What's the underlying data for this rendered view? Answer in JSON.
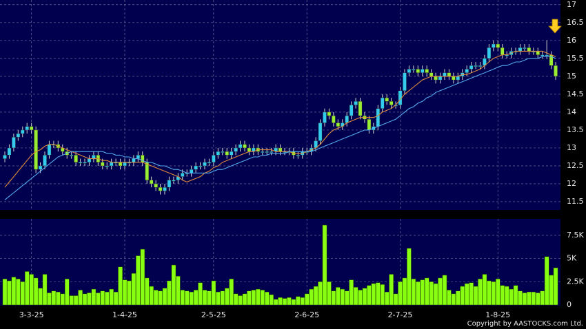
{
  "chart_data": {
    "type": "candlestick",
    "categories": [
      null,
      null,
      null,
      null,
      null,
      null,
      "3-3-25",
      null,
      null,
      null,
      null,
      null,
      null,
      null,
      null,
      null,
      null,
      null,
      null,
      null,
      null,
      null,
      null,
      null,
      null,
      null,
      null,
      "1-4-25",
      null,
      null,
      null,
      null,
      null,
      null,
      null,
      null,
      null,
      null,
      null,
      null,
      null,
      null,
      null,
      null,
      null,
      null,
      null,
      "2-5-25",
      null,
      null,
      null,
      null,
      null,
      null,
      null,
      null,
      null,
      null,
      null,
      null,
      null,
      null,
      null,
      null,
      null,
      null,
      null,
      null,
      "2-6-25",
      null,
      null,
      null,
      null,
      null,
      null,
      null,
      null,
      null,
      null,
      null,
      null,
      null,
      null,
      null,
      null,
      null,
      null,
      null,
      null,
      "2-7-25",
      null,
      null,
      null,
      null,
      null,
      null,
      null,
      null,
      null,
      null,
      null,
      null,
      null,
      null,
      null,
      null,
      null,
      null,
      null,
      null,
      null,
      "1-8-25",
      null,
      null,
      null,
      null,
      null,
      null,
      null,
      null,
      null,
      null,
      null,
      null,
      null
    ],
    "open": [
      12.7,
      12.8,
      13.0,
      13.3,
      13.4,
      13.5,
      13.6,
      13.5,
      12.4,
      12.5,
      12.8,
      13.1,
      13.1,
      13.0,
      12.9,
      12.8,
      12.8,
      12.6,
      12.6,
      12.6,
      12.7,
      12.8,
      12.6,
      12.5,
      12.5,
      12.6,
      12.6,
      12.5,
      12.6,
      12.6,
      12.7,
      12.8,
      12.6,
      12.1,
      12.0,
      11.9,
      11.8,
      11.9,
      12.1,
      12.1,
      12.2,
      12.3,
      12.3,
      12.4,
      12.5,
      12.5,
      12.6,
      12.6,
      12.8,
      12.9,
      12.9,
      12.8,
      12.9,
      13.0,
      13.1,
      13.0,
      12.9,
      13.0,
      12.9,
      12.9,
      12.9,
      12.9,
      13.0,
      12.9,
      12.9,
      12.9,
      12.8,
      12.8,
      12.9,
      12.9,
      13.0,
      13.2,
      13.7,
      14.0,
      13.9,
      13.7,
      13.6,
      13.7,
      13.9,
      14.2,
      14.3,
      13.9,
      13.8,
      13.5,
      13.6,
      14.1,
      14.4,
      14.3,
      14.2,
      14.2,
      14.6,
      15.1,
      15.2,
      15.2,
      15.1,
      15.2,
      15.1,
      15.0,
      14.9,
      15.0,
      15.1,
      15.0,
      14.9,
      15.0,
      15.1,
      15.2,
      15.3,
      15.3,
      15.3,
      15.5,
      15.8,
      15.9,
      15.8,
      15.6,
      15.6,
      15.7,
      15.7,
      15.8,
      15.8,
      15.7,
      15.7,
      15.6,
      15.6,
      15.6,
      15.3
    ],
    "high": [
      12.9,
      13.1,
      13.4,
      13.5,
      13.6,
      13.7,
      13.7,
      13.6,
      12.6,
      12.9,
      13.2,
      13.2,
      13.2,
      13.1,
      13.0,
      12.9,
      12.9,
      12.7,
      12.7,
      12.8,
      12.9,
      12.9,
      12.7,
      12.6,
      12.7,
      12.7,
      12.7,
      12.7,
      12.7,
      12.8,
      12.9,
      12.9,
      12.7,
      12.2,
      12.1,
      12.0,
      12.0,
      12.2,
      12.2,
      12.3,
      12.4,
      12.4,
      12.5,
      12.6,
      12.6,
      12.7,
      12.7,
      12.9,
      13.0,
      13.0,
      13.0,
      13.0,
      13.1,
      13.2,
      13.2,
      13.1,
      13.1,
      13.1,
      13.0,
      13.0,
      13.0,
      13.1,
      13.1,
      13.0,
      13.0,
      13.0,
      12.9,
      13.0,
      13.0,
      13.1,
      13.3,
      13.8,
      14.1,
      14.1,
      14.0,
      13.8,
      13.8,
      14.0,
      14.3,
      14.4,
      14.4,
      14.0,
      13.9,
      13.7,
      14.2,
      14.5,
      14.5,
      14.4,
      14.3,
      14.7,
      15.2,
      15.3,
      15.3,
      15.3,
      15.3,
      15.3,
      15.2,
      15.1,
      15.1,
      15.2,
      15.2,
      15.1,
      15.1,
      15.2,
      15.3,
      15.4,
      15.4,
      15.4,
      15.6,
      15.9,
      16.0,
      16.0,
      15.9,
      15.7,
      15.8,
      15.8,
      15.9,
      15.9,
      15.9,
      15.8,
      15.8,
      15.7,
      16.0,
      15.7,
      15.4
    ],
    "low": [
      12.6,
      12.7,
      12.9,
      13.2,
      13.3,
      13.4,
      13.4,
      12.3,
      12.3,
      12.4,
      12.7,
      13.0,
      12.9,
      12.8,
      12.7,
      12.7,
      12.5,
      12.5,
      12.5,
      12.5,
      12.6,
      12.5,
      12.4,
      12.4,
      12.4,
      12.5,
      12.4,
      12.4,
      12.5,
      12.5,
      12.6,
      12.5,
      12.0,
      11.9,
      11.8,
      11.7,
      11.7,
      11.8,
      12.0,
      12.0,
      12.1,
      12.2,
      12.2,
      12.3,
      12.4,
      12.4,
      12.5,
      12.5,
      12.7,
      12.8,
      12.7,
      12.7,
      12.8,
      12.9,
      12.9,
      12.8,
      12.8,
      12.8,
      12.8,
      12.8,
      12.8,
      12.8,
      12.8,
      12.8,
      12.8,
      12.7,
      12.7,
      12.7,
      12.8,
      12.8,
      12.9,
      13.1,
      13.6,
      13.8,
      13.6,
      13.5,
      13.5,
      13.6,
      13.8,
      14.1,
      13.8,
      13.7,
      13.4,
      13.4,
      13.5,
      14.0,
      14.2,
      14.1,
      14.1,
      14.1,
      14.5,
      15.0,
      15.1,
      15.0,
      15.0,
      15.0,
      14.9,
      14.8,
      14.8,
      14.9,
      14.9,
      14.8,
      14.8,
      14.9,
      15.0,
      15.1,
      15.2,
      15.2,
      15.2,
      15.4,
      15.7,
      15.7,
      15.5,
      15.5,
      15.5,
      15.6,
      15.6,
      15.7,
      15.6,
      15.6,
      15.5,
      15.5,
      15.5,
      15.2,
      14.9
    ],
    "close": [
      12.8,
      13.0,
      13.3,
      13.4,
      13.5,
      13.6,
      13.5,
      12.4,
      12.5,
      12.8,
      13.1,
      13.1,
      13.0,
      12.9,
      12.8,
      12.8,
      12.6,
      12.6,
      12.6,
      12.7,
      12.8,
      12.6,
      12.5,
      12.5,
      12.6,
      12.6,
      12.5,
      12.6,
      12.6,
      12.7,
      12.8,
      12.6,
      12.1,
      12.0,
      11.9,
      11.8,
      11.9,
      12.1,
      12.1,
      12.2,
      12.3,
      12.3,
      12.4,
      12.5,
      12.5,
      12.6,
      12.6,
      12.8,
      12.9,
      12.9,
      12.8,
      12.9,
      13.0,
      13.1,
      13.0,
      12.9,
      13.0,
      12.9,
      12.9,
      12.9,
      12.9,
      13.0,
      12.9,
      12.9,
      12.9,
      12.8,
      12.8,
      12.9,
      12.9,
      13.0,
      13.2,
      13.7,
      14.0,
      13.9,
      13.7,
      13.6,
      13.7,
      13.9,
      14.2,
      14.3,
      13.9,
      13.8,
      13.5,
      13.6,
      14.1,
      14.4,
      14.3,
      14.2,
      14.2,
      14.6,
      15.1,
      15.2,
      15.2,
      15.1,
      15.2,
      15.1,
      15.0,
      14.9,
      15.0,
      15.1,
      15.0,
      14.9,
      15.0,
      15.1,
      15.2,
      15.3,
      15.3,
      15.3,
      15.5,
      15.8,
      15.9,
      15.8,
      15.6,
      15.6,
      15.7,
      15.7,
      15.8,
      15.8,
      15.7,
      15.7,
      15.6,
      15.6,
      15.6,
      15.3,
      15.0
    ],
    "up_color": "#33ccee",
    "down_color": "#99ee33",
    "series": [
      {
        "color": "#e08a3c",
        "values": [
          11.9,
          12.05,
          12.2,
          12.35,
          12.5,
          12.65,
          12.8,
          12.9,
          12.95,
          13.05,
          13.1,
          13.1,
          13.05,
          13.0,
          12.95,
          12.9,
          12.85,
          12.8,
          12.75,
          12.7,
          12.7,
          12.7,
          12.65,
          12.65,
          12.6,
          12.6,
          12.6,
          12.6,
          12.6,
          12.6,
          12.6,
          12.6,
          12.55,
          12.5,
          12.45,
          12.4,
          12.35,
          12.3,
          12.25,
          12.2,
          12.1,
          12.05,
          12.1,
          12.15,
          12.2,
          12.3,
          12.35,
          12.45,
          12.5,
          12.6,
          12.65,
          12.7,
          12.75,
          12.8,
          12.85,
          12.9,
          12.9,
          12.95,
          12.95,
          12.95,
          12.95,
          12.9,
          12.9,
          12.9,
          12.9,
          12.85,
          12.85,
          12.85,
          12.9,
          12.95,
          13.0,
          13.1,
          13.25,
          13.4,
          13.5,
          13.55,
          13.6,
          13.7,
          13.75,
          13.8,
          13.85,
          13.85,
          13.85,
          13.85,
          13.9,
          14.0,
          14.05,
          14.1,
          14.2,
          14.35,
          14.5,
          14.6,
          14.7,
          14.8,
          14.9,
          14.95,
          15.0,
          15.0,
          15.0,
          15.0,
          15.0,
          15.0,
          15.0,
          15.05,
          15.05,
          15.1,
          15.15,
          15.2,
          15.3,
          15.4,
          15.5,
          15.55,
          15.6,
          15.6,
          15.65,
          15.7,
          15.7,
          15.7,
          15.7,
          15.7,
          15.7,
          15.7,
          15.65,
          15.6,
          15.55
        ]
      },
      {
        "color": "#55aaee",
        "values": [
          11.55,
          11.65,
          11.75,
          11.85,
          11.95,
          12.05,
          12.15,
          12.25,
          12.35,
          12.45,
          12.55,
          12.65,
          12.75,
          12.8,
          12.85,
          12.9,
          12.9,
          12.9,
          12.9,
          12.9,
          12.9,
          12.9,
          12.9,
          12.85,
          12.85,
          12.8,
          12.8,
          12.75,
          12.75,
          12.7,
          12.7,
          12.65,
          12.6,
          12.6,
          12.55,
          12.5,
          12.5,
          12.45,
          12.4,
          12.4,
          12.35,
          12.3,
          12.3,
          12.3,
          12.3,
          12.3,
          12.3,
          12.35,
          12.4,
          12.4,
          12.45,
          12.5,
          12.55,
          12.6,
          12.65,
          12.7,
          12.75,
          12.75,
          12.8,
          12.8,
          12.85,
          12.85,
          12.85,
          12.85,
          12.9,
          12.9,
          12.9,
          12.9,
          12.9,
          12.9,
          12.95,
          13.0,
          13.05,
          13.1,
          13.15,
          13.2,
          13.25,
          13.3,
          13.35,
          13.4,
          13.45,
          13.5,
          13.5,
          13.55,
          13.6,
          13.65,
          13.7,
          13.75,
          13.8,
          13.9,
          14.0,
          14.1,
          14.15,
          14.25,
          14.3,
          14.4,
          14.45,
          14.55,
          14.6,
          14.65,
          14.7,
          14.75,
          14.8,
          14.85,
          14.9,
          14.95,
          15.0,
          15.05,
          15.1,
          15.15,
          15.2,
          15.25,
          15.3,
          15.3,
          15.35,
          15.4,
          15.4,
          15.45,
          15.5,
          15.5,
          15.5,
          15.55,
          15.55,
          15.55,
          15.5
        ]
      }
    ],
    "ylim": [
      11.27,
      17.13
    ],
    "yticks": [
      11.5,
      12,
      12.5,
      13,
      13.5,
      14,
      14.5,
      15,
      15.5,
      16,
      16.5,
      17
    ],
    "grid": true,
    "volume": {
      "type": "bar",
      "color": "#88ff11",
      "values": [
        2800,
        2600,
        3000,
        2800,
        2500,
        3600,
        3300,
        2900,
        1800,
        3300,
        1300,
        1500,
        1400,
        1200,
        2800,
        1000,
        1000,
        1600,
        1200,
        1300,
        1700,
        1300,
        1500,
        1400,
        1700,
        1400,
        4100,
        2700,
        2600,
        3400,
        5300,
        6000,
        2900,
        2000,
        1600,
        1500,
        1800,
        2600,
        4300,
        3100,
        1600,
        1500,
        1400,
        1600,
        2400,
        1600,
        1500,
        2600,
        1400,
        1500,
        1800,
        2800,
        1200,
        1000,
        1200,
        1500,
        1600,
        1700,
        1600,
        1400,
        1100,
        600,
        800,
        700,
        800,
        600,
        900,
        800,
        1200,
        1700,
        2000,
        2500,
        8600,
        2500,
        1500,
        1900,
        1700,
        1500,
        2700,
        1900,
        1600,
        1800,
        2100,
        2300,
        2400,
        2200,
        1400,
        3300,
        1200,
        2500,
        2900,
        6100,
        2800,
        2500,
        2700,
        2900,
        2500,
        2300,
        2900,
        3200,
        1600,
        1200,
        1500,
        2000,
        2300,
        2400,
        2000,
        2800,
        3300,
        2600,
        2500,
        2800,
        2100,
        2000,
        1700,
        2100,
        1500,
        1300,
        1400,
        1400,
        1300,
        1500,
        5200,
        3200,
        4000
      ],
      "ylim": [
        0,
        9270
      ],
      "yticks": [
        0,
        {
          "value": 2500,
          "label": "2.5K"
        },
        {
          "value": 5000,
          "label": "5K"
        },
        {
          "value": 7500,
          "label": "7.5K"
        }
      ]
    },
    "copyright": "Copyright by AASTOCKS.com Ltd."
  }
}
